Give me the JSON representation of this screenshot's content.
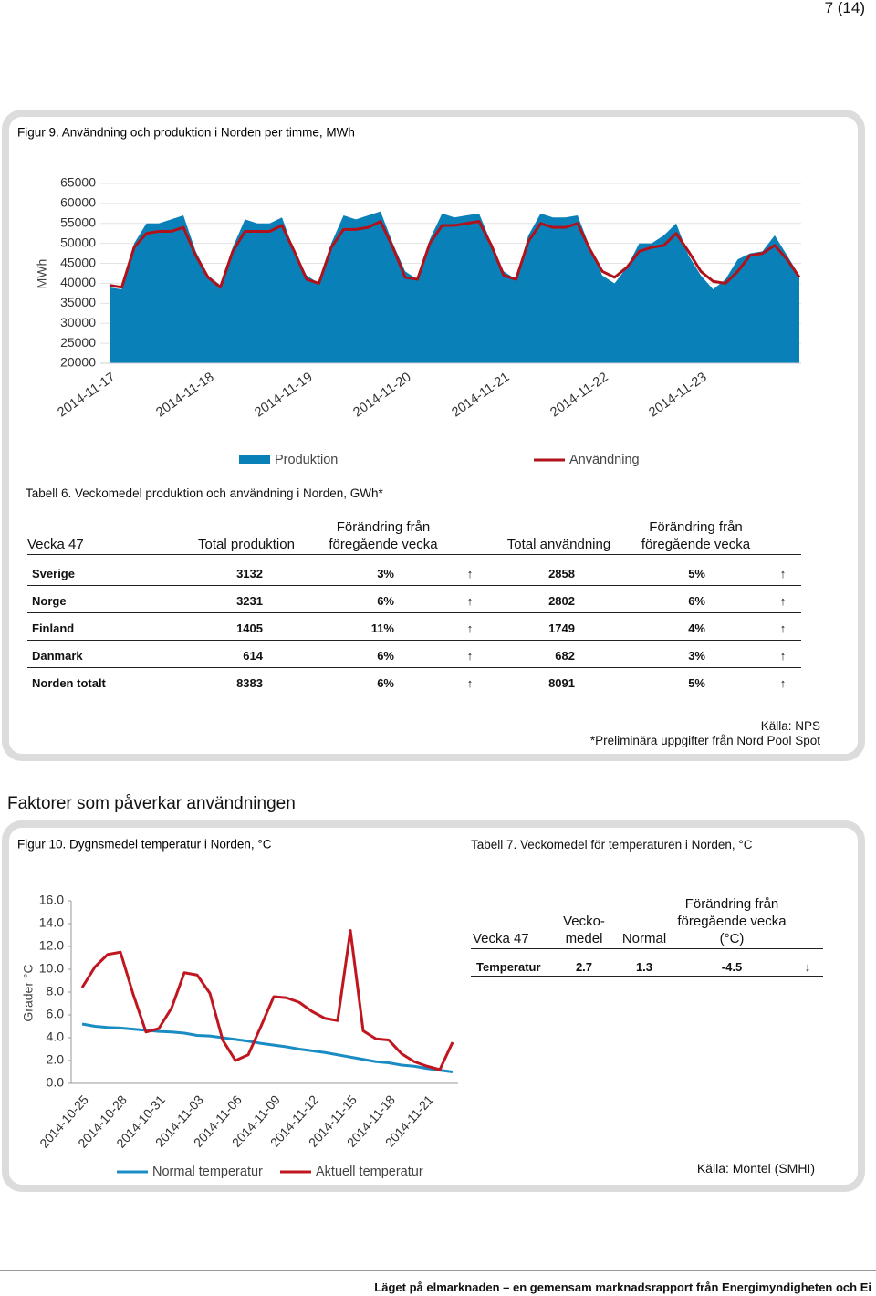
{
  "page_number": "7 (14)",
  "chart_data": [
    {
      "type": "area",
      "title": "Figur 9. Användning och produktion i Norden per timme, MWh",
      "y_label": "MWh",
      "categories": [
        "2014-11-17",
        null,
        null,
        null,
        null,
        null,
        null,
        null,
        "2014-11-18",
        null,
        null,
        null,
        null,
        null,
        null,
        null,
        "2014-11-19",
        null,
        null,
        null,
        null,
        null,
        null,
        null,
        "2014-11-20",
        null,
        null,
        null,
        null,
        null,
        null,
        null,
        "2014-11-21",
        null,
        null,
        null,
        null,
        null,
        null,
        null,
        "2014-11-22",
        null,
        null,
        null,
        null,
        null,
        null,
        null,
        "2014-11-23",
        null,
        null,
        null,
        null,
        null,
        null,
        null,
        null
      ],
      "series": [
        {
          "name": "Produktion",
          "color": "#0a80b8",
          "style": "area",
          "values": [
            39000,
            38500,
            50000,
            55000,
            55000,
            56000,
            57000,
            48000,
            42000,
            39500,
            49000,
            56000,
            55000,
            55000,
            56500,
            48000,
            42000,
            40000,
            50000,
            57000,
            56000,
            57000,
            58000,
            50000,
            43000,
            41000,
            51000,
            57500,
            56500,
            57000,
            57500,
            50000,
            43000,
            41000,
            52000,
            57500,
            56500,
            56500,
            57000,
            49000,
            42000,
            40000,
            44000,
            50000,
            50000,
            52000,
            55000,
            47000,
            42000,
            38500,
            41000,
            46000,
            47500,
            48000,
            52000,
            47000,
            42000
          ]
        },
        {
          "name": "Användning",
          "color": "#b0121b",
          "style": "line",
          "values": [
            39500,
            39000,
            49000,
            52500,
            53000,
            53000,
            54000,
            47000,
            41500,
            39000,
            48000,
            53000,
            53000,
            53000,
            54500,
            48000,
            41000,
            40000,
            49000,
            53500,
            53500,
            54000,
            55500,
            49000,
            41500,
            41000,
            50000,
            54500,
            54500,
            55000,
            55500,
            49500,
            42000,
            41000,
            50500,
            55000,
            54000,
            54000,
            55000,
            48500,
            43000,
            41500,
            44000,
            48000,
            49000,
            49500,
            52500,
            48000,
            43000,
            40500,
            40000,
            43000,
            47000,
            47500,
            49500,
            46000,
            41500
          ]
        }
      ],
      "ylim": [
        20000,
        65000
      ],
      "yticks": [
        20000,
        25000,
        30000,
        35000,
        40000,
        45000,
        50000,
        55000,
        60000,
        65000
      ],
      "grid": true
    },
    {
      "type": "line",
      "title": "Figur 10. Dygnsmedel temperatur i Norden, °C",
      "y_label": "Grader °C",
      "categories": [
        "2014-10-25",
        null,
        null,
        "2014-10-28",
        null,
        null,
        "2014-10-31",
        null,
        null,
        "2014-11-03",
        null,
        null,
        "2014-11-06",
        null,
        null,
        "2014-11-09",
        null,
        null,
        "2014-11-12",
        null,
        null,
        "2014-11-15",
        null,
        null,
        "2014-11-18",
        null,
        null,
        "2014-11-21",
        null,
        null
      ],
      "series": [
        {
          "name": "Normal temperatur",
          "color": "#1a8cc4",
          "values": [
            5.2,
            5.0,
            4.9,
            4.85,
            4.75,
            4.65,
            4.55,
            4.5,
            4.4,
            4.2,
            4.15,
            4.0,
            3.85,
            3.7,
            3.5,
            3.35,
            3.2,
            3.0,
            2.85,
            2.7,
            2.5,
            2.3,
            2.1,
            1.9,
            1.8,
            1.6,
            1.5,
            1.3,
            1.15,
            1.0
          ]
        },
        {
          "name": "Aktuell temperatur",
          "color": "#c0161f",
          "values": [
            8.4,
            10.2,
            11.3,
            11.5,
            7.8,
            4.5,
            4.8,
            6.6,
            9.7,
            9.5,
            7.9,
            3.8,
            2.0,
            2.5,
            5.0,
            7.6,
            7.5,
            7.1,
            6.3,
            5.7,
            5.5,
            13.4,
            4.6,
            3.9,
            3.8,
            2.6,
            1.9,
            1.5,
            1.2,
            3.6
          ]
        }
      ],
      "ylim": [
        0,
        16
      ],
      "yticks": [
        {
          "value": 0,
          "label": "0.0"
        },
        {
          "value": 2,
          "label": "2.0"
        },
        {
          "value": 4,
          "label": "4.0"
        },
        {
          "value": 6,
          "label": "6.0"
        },
        {
          "value": 8,
          "label": "8.0"
        },
        {
          "value": 10,
          "label": "10.0"
        },
        {
          "value": 12,
          "label": "12.0"
        },
        {
          "value": 14,
          "label": "14.0"
        },
        {
          "value": 16,
          "label": "16.0"
        }
      ],
      "grid": false
    }
  ],
  "table6": {
    "title": "Tabell 6. Veckomedel produktion och användning i Norden, GWh*",
    "header": [
      "Vecka 47",
      "Total produktion",
      "Förändring från föregående vecka",
      "Total användning",
      "Förändring från föregående vecka"
    ],
    "rows": [
      [
        "Sverige",
        3132,
        "3%",
        "↑",
        2858,
        "5%",
        "↑"
      ],
      [
        "Norge",
        3231,
        "6%",
        "↑",
        2802,
        "6%",
        "↑"
      ],
      [
        "Finland",
        1405,
        "11%",
        "↑",
        1749,
        "4%",
        "↑"
      ],
      [
        "Danmark",
        614,
        "6%",
        "↑",
        682,
        "3%",
        "↑"
      ],
      [
        "Norden totalt",
        8383,
        "6%",
        "↑",
        8091,
        "5%",
        "↑"
      ]
    ],
    "source": "Källa: NPS",
    "note": "*Preliminära uppgifter från Nord Pool Spot"
  },
  "section_heading": "Faktorer som påverkar användningen",
  "table7": {
    "title": "Tabell 7. Veckomedel för temperaturen i Norden, °C",
    "header": [
      "Vecka 47",
      "Vecko-medel",
      "Normal",
      "Förändring från föregående vecka (°C)"
    ],
    "rows": [
      [
        "Temperatur",
        "2.7",
        "1.3",
        "-4.5",
        "↓"
      ]
    ],
    "source": "Källa: Montel (SMHI)"
  },
  "footer": "Läget på elmarknaden – en gemensam marknadsrapport från Energimyndigheten och Ei"
}
